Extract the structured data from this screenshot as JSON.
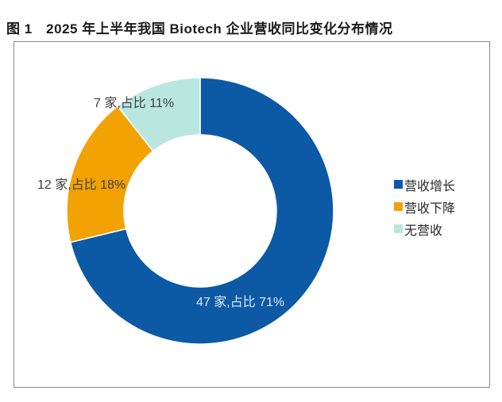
{
  "figure": {
    "title": "图 1　2025 年上半年我国 Biotech 企业营收同比变化分布情况"
  },
  "chart_data": {
    "type": "pie",
    "subtype": "donut",
    "title": "2025 年上半年我国 Biotech 企业营收同比变化分布情况",
    "unit": "家",
    "categories": [
      "营收增长",
      "营收下降",
      "无营收"
    ],
    "values": [
      47,
      12,
      7
    ],
    "percentages": [
      71,
      18,
      11
    ],
    "colors": [
      "#0c59a6",
      "#f2a202",
      "#b9e7e0"
    ],
    "slice_labels": [
      "47 家,占比 71%",
      "12 家,占比 18%",
      "7 家,占比 11%"
    ],
    "legend": [
      "营收增长",
      "营收下降",
      "无营收"
    ],
    "legend_position": "right",
    "start_angle_deg": 90,
    "direction": "clockwise",
    "inner_radius_ratio": 0.57
  }
}
